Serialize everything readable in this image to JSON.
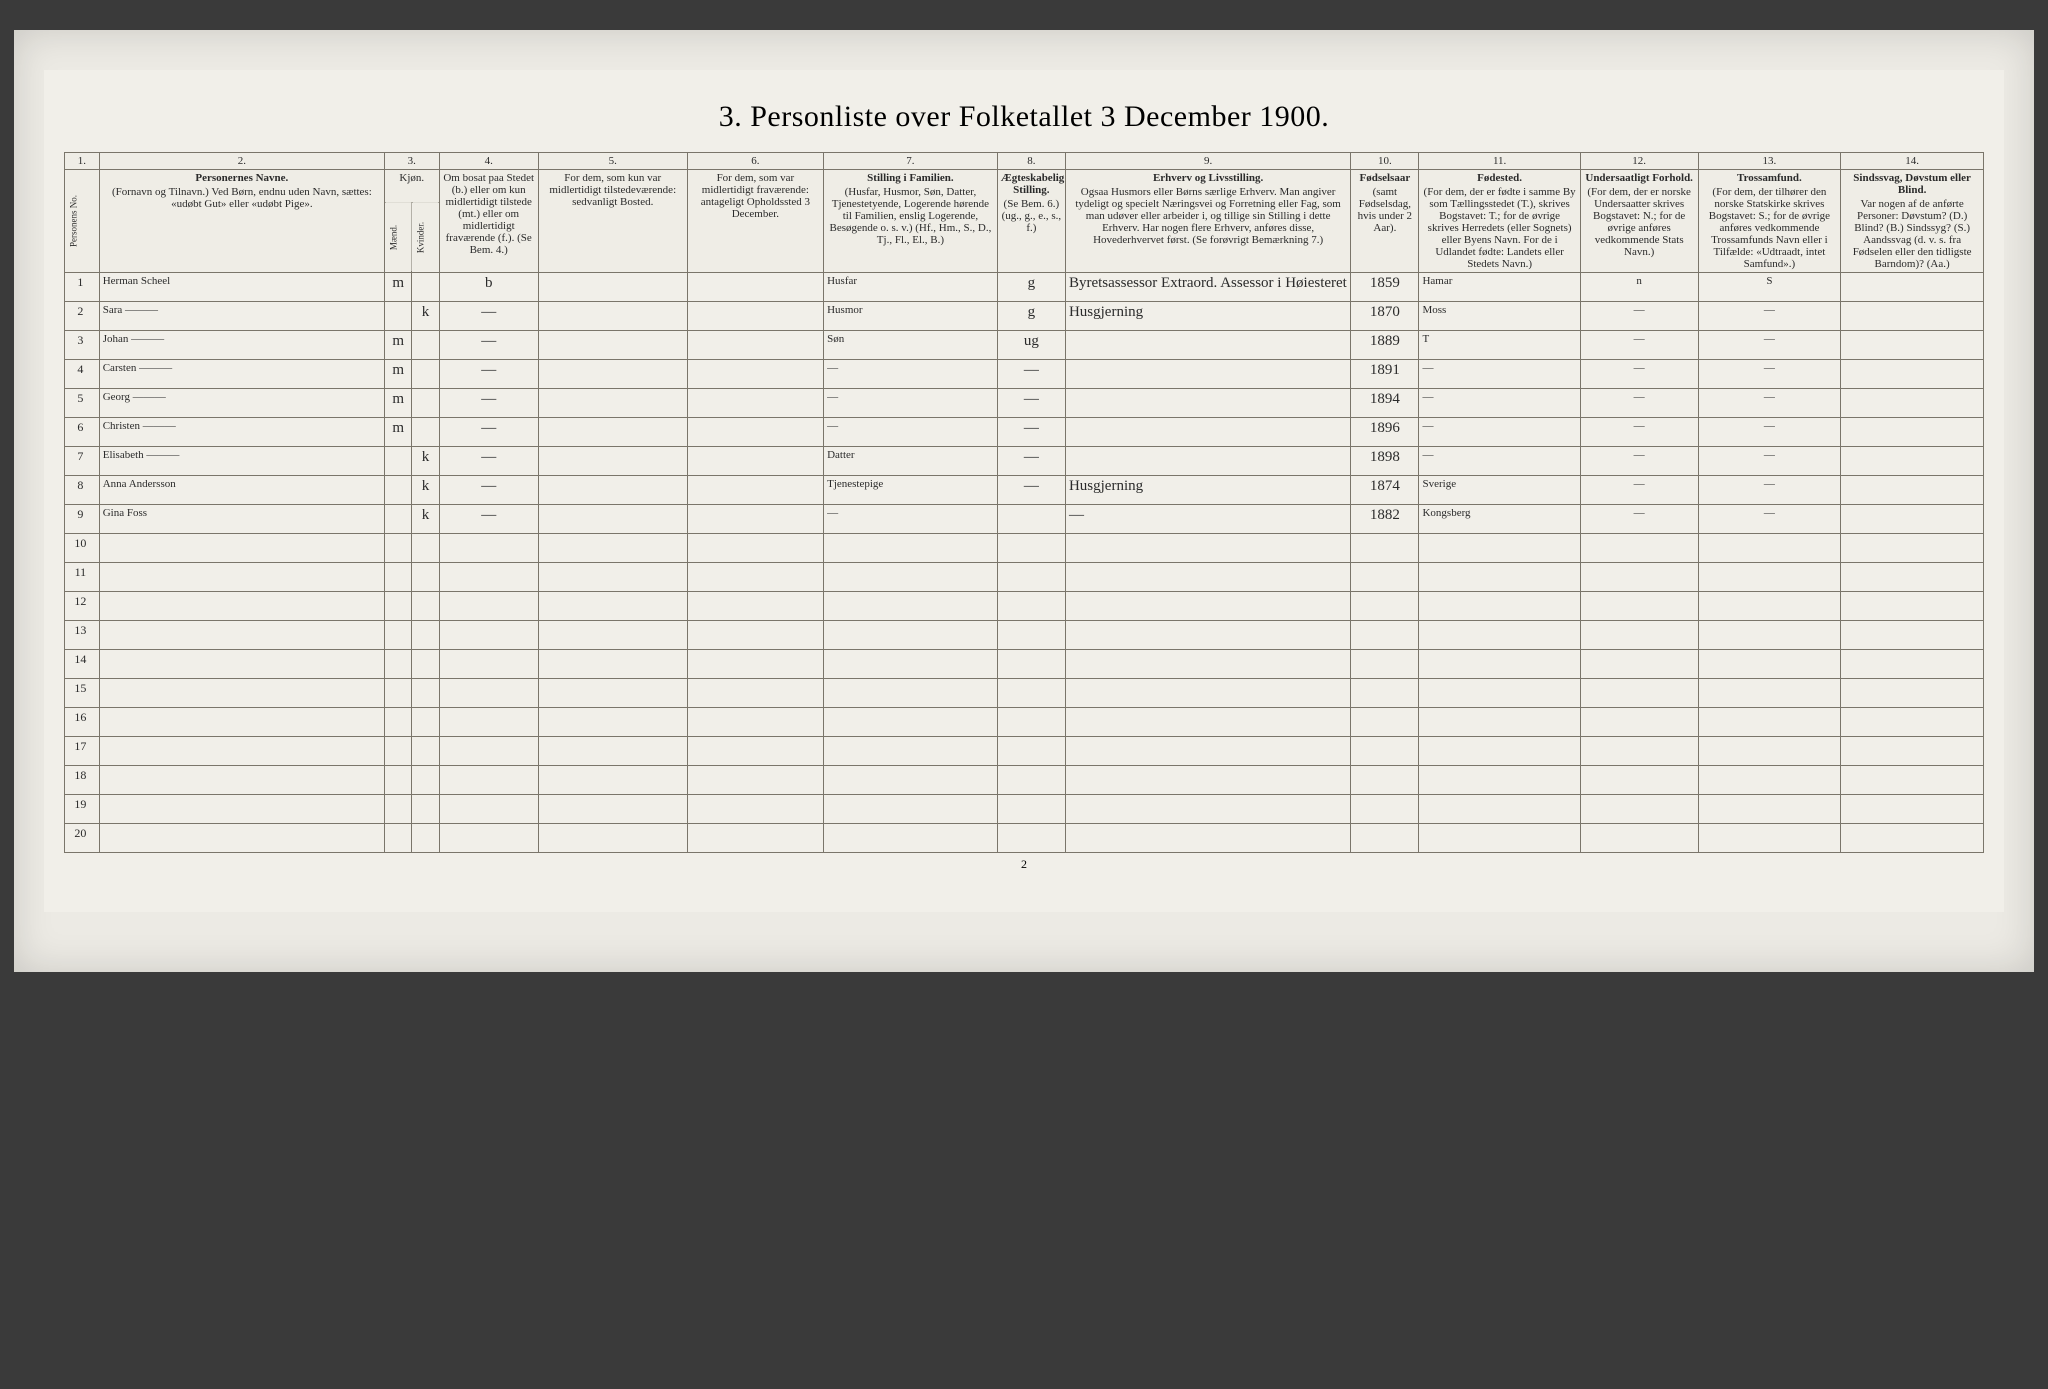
{
  "title": "3. Personliste over Folketallet 3 December 1900.",
  "footer_page": "2",
  "colnums": [
    "1.",
    "2.",
    "3.",
    "4.",
    "5.",
    "6.",
    "7.",
    "8.",
    "9.",
    "10.",
    "11.",
    "12.",
    "13.",
    "14."
  ],
  "headers": {
    "c1": "Personens No.",
    "c2": {
      "strong": "Personernes Navne.",
      "sub": "(Fornavn og Tilnavn.)\nVed Børn, endnu uden Navn, sættes: «udøbt Gut» eller «udøbt Pige»."
    },
    "c3": {
      "top": "Kjøn.",
      "m": "Mænd.",
      "k": "Kvinder.",
      "mk": "m.  k."
    },
    "c4": "Om bosat paa Stedet (b.) eller om kun midlertidigt tilstede (mt.) eller om midlertidigt fraværende (f.). (Se Bem. 4.)",
    "c5": "For dem, som kun var midlertidigt tilstedeværende:\nsedvanligt Bosted.",
    "c6": "For dem, som var midlertidigt fraværende:\nantageligt Opholdssted 3 December.",
    "c7": {
      "strong": "Stilling i Familien.",
      "sub": "(Husfar, Husmor, Søn, Datter, Tjenestetyende, Logerende hørende til Familien, enslig Logerende, Besøgende o. s. v.)\n(Hf., Hm., S., D., Tj., Fl., El., B.)"
    },
    "c8": {
      "strong": "Ægteskabelig Stilling.",
      "sub": "(Se Bem. 6.)\n(ug., g., e., s., f.)"
    },
    "c9": {
      "strong": "Erhverv og Livsstilling.",
      "sub": "Ogsaa Husmors eller Børns særlige Erhverv. Man angiver tydeligt og specielt Næringsvei og Forretning eller Fag, som man udøver eller arbeider i, og tillige sin Stilling i dette Erhverv. Har nogen flere Erhverv, anføres disse, Hovederhvervet først.\n(Se forøvrigt Bemærkning 7.)"
    },
    "c10": {
      "strong": "Fødselsaar",
      "sub": "(samt Fødselsdag, hvis under 2 Aar)."
    },
    "c11": {
      "strong": "Fødested.",
      "sub": "(For dem, der er fødte i samme By som Tællingsstedet (T.), skrives Bogstavet: T.; for de øvrige skrives Herredets (eller Sognets) eller Byens Navn. For de i Udlandet fødte: Landets eller Stedets Navn.)"
    },
    "c12": {
      "strong": "Undersaatligt Forhold.",
      "sub": "(For dem, der er norske Undersaatter skrives Bogstavet: N.; for de øvrige anføres vedkommende Stats Navn.)"
    },
    "c13": {
      "strong": "Trossamfund.",
      "sub": "(For dem, der tilhører den norske Statskirke skrives Bogstavet: S.; for de øvrige anføres vedkommende Trossamfunds Navn eller i Tilfælde: «Udtraadt, intet Samfund».)"
    },
    "c14": {
      "strong": "Sindssvag, Døvstum eller Blind.",
      "sub": "Var nogen af de anførte Personer: Døvstum? (D.) Blind? (B.) Sindssyg? (S.) Aandssvag (d. v. s. fra Fødselen eller den tidligste Barndom)? (Aa.)"
    }
  },
  "rows": [
    {
      "no": "1",
      "name": "Herman Scheel",
      "m": "m",
      "k": "",
      "bosat": "b",
      "c5": "",
      "c6": "",
      "stilling": "Husfar",
      "egte": "g",
      "erhverv": "Byretsassessor\nExtraord. Assessor i Høiesteret",
      "aar": "1859",
      "fodested": "Hamar",
      "undersaat": "n",
      "tros": "S",
      "c14": ""
    },
    {
      "no": "2",
      "name": "Sara  ———",
      "m": "",
      "k": "k",
      "bosat": "—",
      "c5": "",
      "c6": "",
      "stilling": "Husmor",
      "egte": "g",
      "erhverv": "Husgjerning",
      "aar": "1870",
      "fodested": "Moss",
      "undersaat": "—",
      "tros": "—",
      "c14": ""
    },
    {
      "no": "3",
      "name": "Johan  ———",
      "m": "m",
      "k": "",
      "bosat": "—",
      "c5": "",
      "c6": "",
      "stilling": "Søn",
      "egte": "ug",
      "erhverv": "",
      "aar": "1889",
      "fodested": "T",
      "undersaat": "—",
      "tros": "—",
      "c14": ""
    },
    {
      "no": "4",
      "name": "Carsten  ———",
      "m": "m",
      "k": "",
      "bosat": "—",
      "c5": "",
      "c6": "",
      "stilling": "—",
      "egte": "—",
      "erhverv": "",
      "aar": "1891",
      "fodested": "—",
      "undersaat": "—",
      "tros": "—",
      "c14": ""
    },
    {
      "no": "5",
      "name": "Georg  ———",
      "m": "m",
      "k": "",
      "bosat": "—",
      "c5": "",
      "c6": "",
      "stilling": "—",
      "egte": "—",
      "erhverv": "",
      "aar": "1894",
      "fodested": "—",
      "undersaat": "—",
      "tros": "—",
      "c14": ""
    },
    {
      "no": "6",
      "name": "Christen  ———",
      "m": "m",
      "k": "",
      "bosat": "—",
      "c5": "",
      "c6": "",
      "stilling": "—",
      "egte": "—",
      "erhverv": "",
      "aar": "1896",
      "fodested": "—",
      "undersaat": "—",
      "tros": "—",
      "c14": ""
    },
    {
      "no": "7",
      "name": "Elisabeth  ———",
      "m": "",
      "k": "k",
      "bosat": "—",
      "c5": "",
      "c6": "",
      "stilling": "Datter",
      "egte": "—",
      "erhverv": "",
      "aar": "1898",
      "fodested": "—",
      "undersaat": "—",
      "tros": "—",
      "c14": ""
    },
    {
      "no": "8",
      "name": "Anna Andersson",
      "m": "",
      "k": "k",
      "bosat": "—",
      "c5": "",
      "c6": "",
      "stilling": "Tjenestepige",
      "egte": "—",
      "erhverv": "Husgjerning",
      "aar": "1874",
      "fodested": "Sverige",
      "undersaat": "—",
      "tros": "—",
      "c14": ""
    },
    {
      "no": "9",
      "name": "Gina Foss",
      "m": "",
      "k": "k",
      "bosat": "—",
      "c5": "",
      "c6": "",
      "stilling": "—",
      "egte": "",
      "erhverv": "—",
      "aar": "1882",
      "fodested": "Kongsberg",
      "undersaat": "—",
      "tros": "—",
      "c14": ""
    }
  ],
  "empty_row_labels": [
    "10",
    "11",
    "12",
    "13",
    "14",
    "15",
    "16",
    "17",
    "18",
    "19",
    "20"
  ],
  "colors": {
    "page_bg": "#eceae4",
    "outer_bg": "#3a3a3a",
    "rule": "#7a756a",
    "ink": "#2b2b2b"
  }
}
